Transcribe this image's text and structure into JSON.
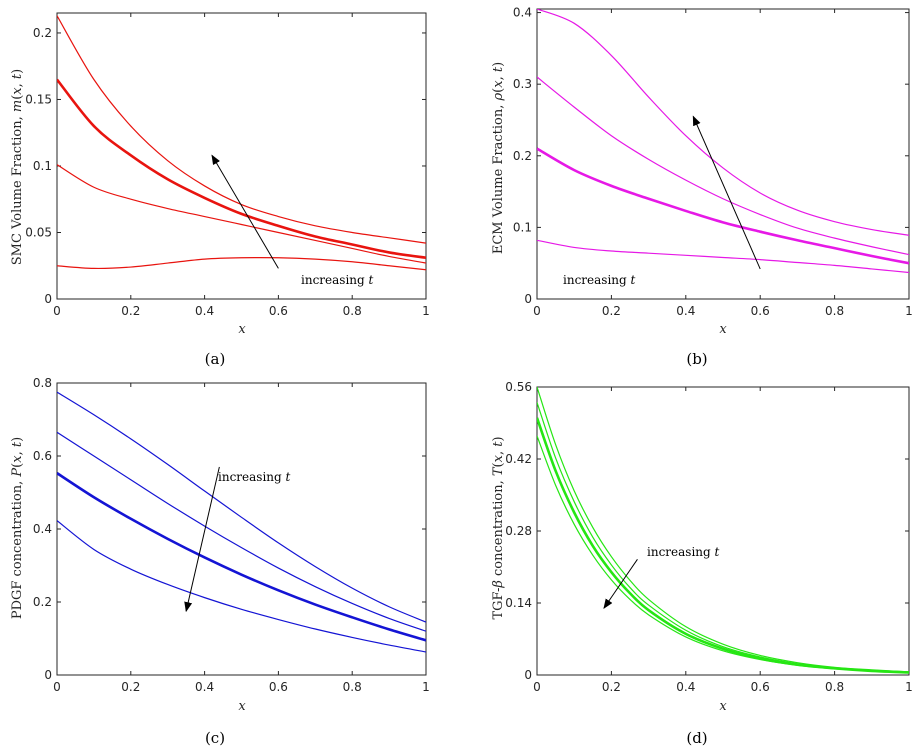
{
  "chart_data": [
    {
      "panel": "(a)",
      "type": "line",
      "xlabel": "x",
      "ylabel": "SMC Volume Fraction, m(x, t)",
      "xlim": [
        0,
        1
      ],
      "ylim": [
        0,
        0.215
      ],
      "xticks": [
        "0",
        "0.2",
        "0.4",
        "0.6",
        "0.8",
        "1"
      ],
      "yticks": [
        "0",
        "0.05",
        "0.1",
        "0.15",
        "0.2"
      ],
      "ytick_values": [
        0,
        0.05,
        0.1,
        0.15,
        0.2
      ],
      "color": "#e8140f",
      "annotation": "increasing t",
      "arrow": {
        "from": [
          0.6,
          0.023
        ],
        "to": [
          0.42,
          0.108
        ]
      },
      "series": [
        {
          "width": 1.2,
          "x": [
            0,
            0.1,
            0.2,
            0.3,
            0.4,
            0.5,
            0.6,
            0.7,
            0.8,
            0.9,
            1.0
          ],
          "values": [
            0.025,
            0.023,
            0.024,
            0.027,
            0.03,
            0.031,
            0.031,
            0.03,
            0.028,
            0.025,
            0.022
          ]
        },
        {
          "width": 1.2,
          "x": [
            0,
            0.1,
            0.2,
            0.3,
            0.4,
            0.5,
            0.6,
            0.7,
            0.8,
            0.9,
            1.0
          ],
          "values": [
            0.101,
            0.084,
            0.075,
            0.068,
            0.062,
            0.056,
            0.05,
            0.044,
            0.038,
            0.032,
            0.027
          ]
        },
        {
          "width": 2.6,
          "x": [
            0,
            0.1,
            0.2,
            0.3,
            0.4,
            0.5,
            0.6,
            0.7,
            0.8,
            0.9,
            1.0
          ],
          "values": [
            0.165,
            0.13,
            0.108,
            0.09,
            0.076,
            0.064,
            0.055,
            0.047,
            0.041,
            0.035,
            0.031
          ]
        },
        {
          "width": 1.2,
          "x": [
            0,
            0.1,
            0.2,
            0.3,
            0.4,
            0.5,
            0.6,
            0.7,
            0.8,
            0.9,
            1.0
          ],
          "values": [
            0.213,
            0.165,
            0.13,
            0.104,
            0.085,
            0.071,
            0.062,
            0.055,
            0.05,
            0.046,
            0.042
          ]
        }
      ]
    },
    {
      "panel": "(b)",
      "type": "line",
      "xlabel": "x",
      "ylabel": "ECM Volume Fraction, ρ(x, t)",
      "xlim": [
        0,
        1
      ],
      "ylim": [
        0,
        0.405
      ],
      "xticks": [
        "0",
        "0.2",
        "0.4",
        "0.6",
        "0.8",
        "1"
      ],
      "yticks": [
        "0",
        "0.1",
        "0.2",
        "0.3",
        "0.4"
      ],
      "ytick_values": [
        0,
        0.1,
        0.2,
        0.3,
        0.4
      ],
      "color": "#e619e6",
      "annotation": "increasing t",
      "arrow": {
        "from": [
          0.6,
          0.042
        ],
        "to": [
          0.42,
          0.255
        ]
      },
      "series": [
        {
          "width": 1.2,
          "x": [
            0,
            0.1,
            0.2,
            0.3,
            0.4,
            0.5,
            0.6,
            0.7,
            0.8,
            0.9,
            1.0
          ],
          "values": [
            0.082,
            0.072,
            0.067,
            0.064,
            0.061,
            0.058,
            0.055,
            0.051,
            0.047,
            0.042,
            0.037
          ]
        },
        {
          "width": 2.6,
          "x": [
            0,
            0.1,
            0.2,
            0.3,
            0.4,
            0.5,
            0.6,
            0.7,
            0.8,
            0.9,
            1.0
          ],
          "values": [
            0.21,
            0.18,
            0.158,
            0.14,
            0.123,
            0.107,
            0.094,
            0.082,
            0.071,
            0.06,
            0.05
          ]
        },
        {
          "width": 1.2,
          "x": [
            0,
            0.1,
            0.2,
            0.3,
            0.4,
            0.5,
            0.6,
            0.7,
            0.8,
            0.9,
            1.0
          ],
          "values": [
            0.31,
            0.268,
            0.228,
            0.195,
            0.166,
            0.14,
            0.118,
            0.099,
            0.085,
            0.073,
            0.062
          ]
        },
        {
          "width": 1.2,
          "x": [
            0,
            0.1,
            0.2,
            0.3,
            0.4,
            0.5,
            0.6,
            0.7,
            0.8,
            0.9,
            1.0
          ],
          "values": [
            0.405,
            0.385,
            0.34,
            0.282,
            0.228,
            0.183,
            0.148,
            0.124,
            0.108,
            0.097,
            0.089
          ]
        }
      ]
    },
    {
      "panel": "(c)",
      "type": "line",
      "xlabel": "x",
      "ylabel": "PDGF concentration, P(x, t)",
      "xlim": [
        0,
        1
      ],
      "ylim": [
        0,
        0.8
      ],
      "xticks": [
        "0",
        "0.2",
        "0.4",
        "0.6",
        "0.8",
        "1"
      ],
      "yticks": [
        "0",
        "0.2",
        "0.4",
        "0.6",
        "0.8"
      ],
      "ytick_values": [
        0,
        0.2,
        0.4,
        0.6,
        0.8
      ],
      "color": "#1414d4",
      "annotation": "increasing t",
      "arrow": {
        "from": [
          0.44,
          0.57
        ],
        "to": [
          0.35,
          0.175
        ]
      },
      "series": [
        {
          "width": 1.2,
          "x": [
            0,
            0.1,
            0.2,
            0.3,
            0.4,
            0.5,
            0.6,
            0.7,
            0.8,
            0.9,
            1.0
          ],
          "values": [
            0.775,
            0.713,
            0.647,
            0.577,
            0.504,
            0.432,
            0.362,
            0.297,
            0.238,
            0.187,
            0.145
          ]
        },
        {
          "width": 1.2,
          "x": [
            0,
            0.1,
            0.2,
            0.3,
            0.4,
            0.5,
            0.6,
            0.7,
            0.8,
            0.9,
            1.0
          ],
          "values": [
            0.665,
            0.6,
            0.535,
            0.47,
            0.408,
            0.349,
            0.293,
            0.242,
            0.196,
            0.155,
            0.12
          ]
        },
        {
          "width": 2.6,
          "x": [
            0,
            0.1,
            0.2,
            0.3,
            0.4,
            0.5,
            0.6,
            0.7,
            0.8,
            0.9,
            1.0
          ],
          "values": [
            0.553,
            0.487,
            0.428,
            0.373,
            0.322,
            0.275,
            0.232,
            0.193,
            0.158,
            0.125,
            0.095
          ]
        },
        {
          "width": 1.2,
          "x": [
            0,
            0.1,
            0.2,
            0.3,
            0.4,
            0.5,
            0.6,
            0.7,
            0.8,
            0.9,
            1.0
          ],
          "values": [
            0.423,
            0.344,
            0.29,
            0.248,
            0.212,
            0.18,
            0.152,
            0.126,
            0.103,
            0.082,
            0.063
          ]
        }
      ]
    },
    {
      "panel": "(d)",
      "type": "line",
      "xlabel": "x",
      "ylabel": "TGF-β concentration, T(x, t)",
      "xlim": [
        0,
        1
      ],
      "ylim": [
        0,
        0.56
      ],
      "xticks": [
        "0",
        "0.2",
        "0.4",
        "0.6",
        "0.8",
        "1"
      ],
      "yticks": [
        "0",
        "0.14",
        "0.28",
        "0.42",
        "0.56"
      ],
      "ytick_values": [
        0,
        0.14,
        0.28,
        0.42,
        0.56
      ],
      "color": "#26e614",
      "annotation": "increasing t",
      "arrow": {
        "from": [
          0.27,
          0.225
        ],
        "to": [
          0.18,
          0.13
        ]
      },
      "series": [
        {
          "width": 1.2,
          "x": [
            0,
            0.05,
            0.1,
            0.15,
            0.2,
            0.25,
            0.3,
            0.4,
            0.5,
            0.6,
            0.7,
            0.8,
            0.9,
            1.0
          ],
          "values": [
            0.56,
            0.448,
            0.358,
            0.287,
            0.23,
            0.184,
            0.147,
            0.094,
            0.06,
            0.038,
            0.024,
            0.015,
            0.01,
            0.006
          ]
        },
        {
          "width": 1.2,
          "x": [
            0,
            0.05,
            0.1,
            0.15,
            0.2,
            0.25,
            0.3,
            0.4,
            0.5,
            0.6,
            0.7,
            0.8,
            0.9,
            1.0
          ],
          "values": [
            0.53,
            0.422,
            0.337,
            0.268,
            0.214,
            0.17,
            0.136,
            0.087,
            0.055,
            0.035,
            0.022,
            0.014,
            0.009,
            0.006
          ]
        },
        {
          "width": 2.6,
          "x": [
            0,
            0.05,
            0.1,
            0.15,
            0.2,
            0.25,
            0.3,
            0.4,
            0.5,
            0.6,
            0.7,
            0.8,
            0.9,
            1.0
          ],
          "values": [
            0.5,
            0.397,
            0.316,
            0.251,
            0.2,
            0.159,
            0.126,
            0.08,
            0.051,
            0.032,
            0.02,
            0.013,
            0.008,
            0.005
          ]
        },
        {
          "width": 1.2,
          "x": [
            0,
            0.05,
            0.1,
            0.15,
            0.2,
            0.25,
            0.3,
            0.4,
            0.5,
            0.6,
            0.7,
            0.8,
            0.9,
            1.0
          ],
          "values": [
            0.465,
            0.369,
            0.293,
            0.233,
            0.185,
            0.147,
            0.117,
            0.074,
            0.047,
            0.03,
            0.019,
            0.012,
            0.008,
            0.005
          ]
        }
      ]
    }
  ]
}
